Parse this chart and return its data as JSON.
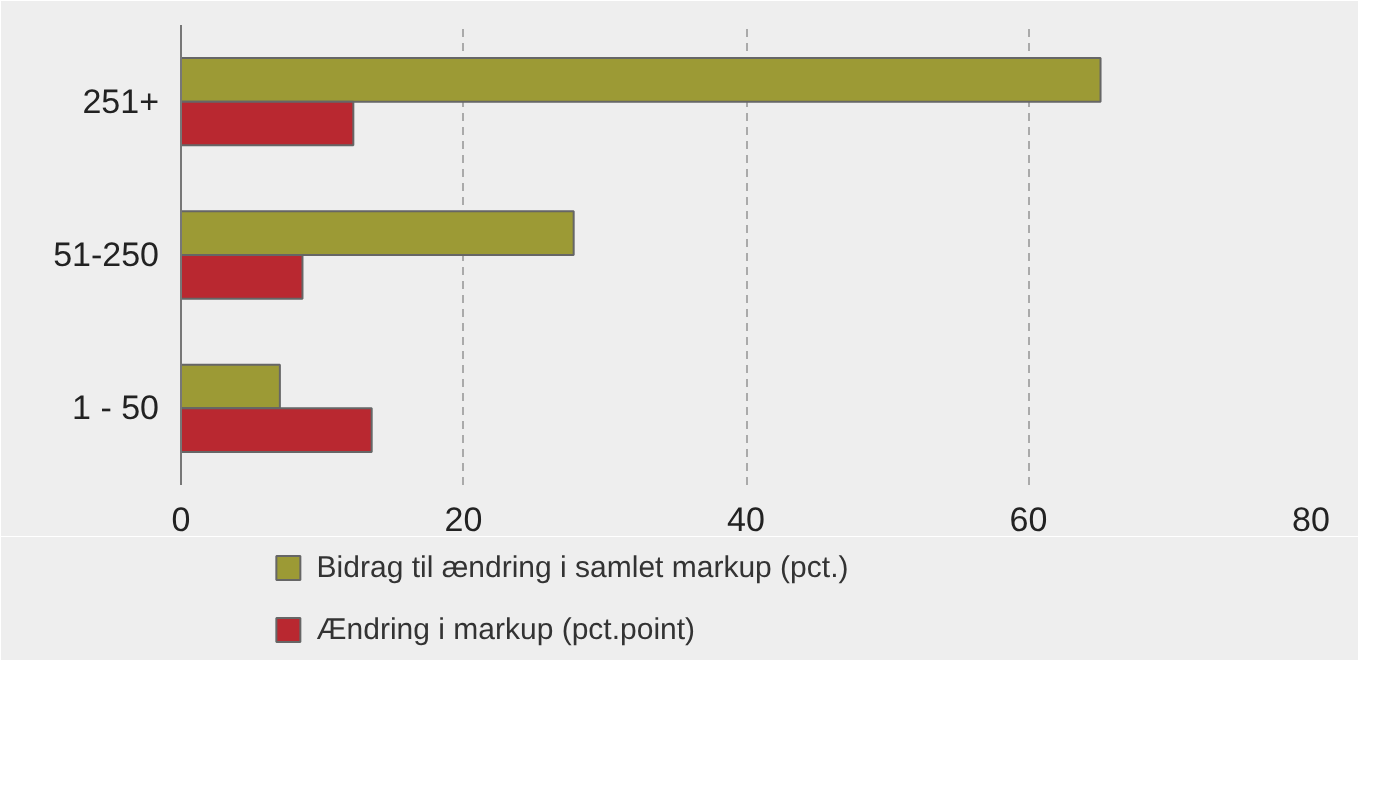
{
  "chart_data": {
    "type": "bar",
    "orientation": "horizontal",
    "categories": [
      "251+",
      "51-250",
      "1 - 50"
    ],
    "series": [
      {
        "name": "Bidrag til ændring i samlet markup (pct.)",
        "color": "#9c9a35",
        "values": [
          65.1,
          27.8,
          7.0
        ]
      },
      {
        "name": "Ændring i markup (pct.point)",
        "color": "#b92830",
        "values": [
          12.2,
          8.6,
          13.5
        ]
      }
    ],
    "xlim": [
      0,
      80
    ],
    "xticks": [
      0,
      20,
      40,
      60,
      80
    ],
    "grid": "x",
    "legend": "bottom"
  }
}
